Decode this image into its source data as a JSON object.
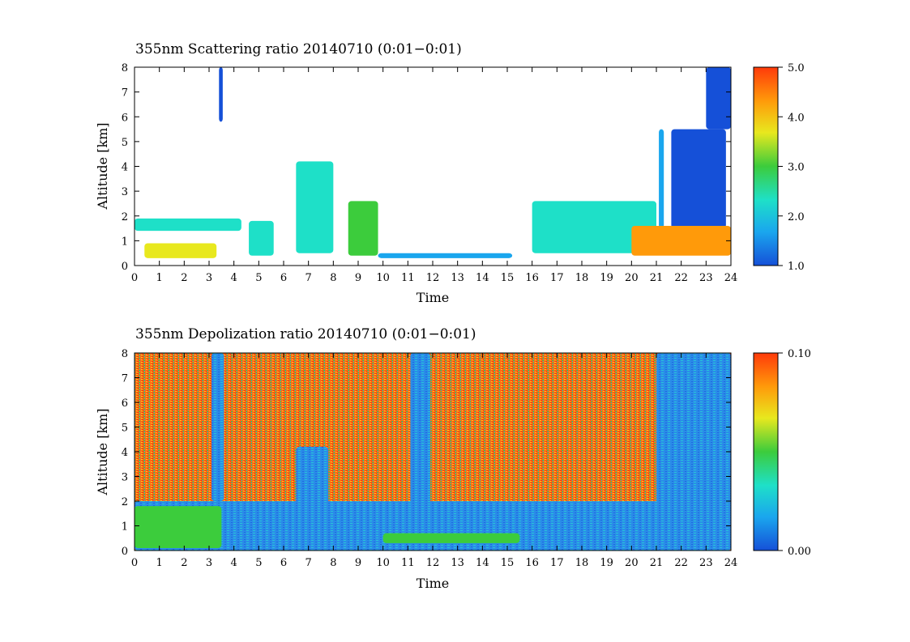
{
  "chart_data": [
    {
      "type": "heatmap",
      "title": "355nm Scattering ratio  20140710 (0:01−0:01)",
      "xlabel": "Time",
      "ylabel": "Altitude [km]",
      "xlim": [
        0,
        24
      ],
      "ylim": [
        0,
        8
      ],
      "x_ticks": [
        "0",
        "1",
        "2",
        "3",
        "4",
        "5",
        "6",
        "7",
        "8",
        "9",
        "10",
        "11",
        "12",
        "13",
        "14",
        "15",
        "16",
        "17",
        "18",
        "19",
        "20",
        "21",
        "22",
        "23",
        "24"
      ],
      "y_ticks": [
        "0",
        "1",
        "2",
        "3",
        "4",
        "5",
        "6",
        "7",
        "8"
      ],
      "colorbar": {
        "min": 1.0,
        "max": 5.0,
        "ticks": [
          "1.0",
          "2.0",
          "3.0",
          "4.0",
          "5.0"
        ],
        "colors": [
          "#1550d8",
          "#1aa6ee",
          "#1ee0c8",
          "#3ccc3c",
          "#e8e81e",
          "#ff9a0a",
          "#ff3a0a"
        ]
      },
      "features": [
        {
          "x": [
            0,
            4.3
          ],
          "y": [
            1.4,
            1.9
          ],
          "value": 2.2
        },
        {
          "x": [
            0.4,
            3.3
          ],
          "y": [
            0.3,
            0.9
          ],
          "value": 3.8
        },
        {
          "x": [
            3.4,
            3.55
          ],
          "y": [
            5.8,
            8
          ],
          "value": 1.3
        },
        {
          "x": [
            4.6,
            5.6
          ],
          "y": [
            0.4,
            1.8
          ],
          "value": 2.0
        },
        {
          "x": [
            6.5,
            8.0
          ],
          "y": [
            0.5,
            4.2
          ],
          "value": 2.5
        },
        {
          "x": [
            8.6,
            9.8
          ],
          "y": [
            0.4,
            2.6
          ],
          "value": 2.8
        },
        {
          "x": [
            9.8,
            15.2
          ],
          "y": [
            0.3,
            0.5
          ],
          "value": 1.5
        },
        {
          "x": [
            16.0,
            21.0
          ],
          "y": [
            0.5,
            2.6
          ],
          "value": 2.3
        },
        {
          "x": [
            21.1,
            21.3
          ],
          "y": [
            1.5,
            5.5
          ],
          "value": 1.4
        },
        {
          "x": [
            21.6,
            23.8
          ],
          "y": [
            1.5,
            5.5
          ],
          "value": 1.3
        },
        {
          "x": [
            20.0,
            24.0
          ],
          "y": [
            0.4,
            1.6
          ],
          "value": 4.2
        },
        {
          "x": [
            23.0,
            24.0
          ],
          "y": [
            5.5,
            8.0
          ],
          "value": 1.2
        }
      ]
    },
    {
      "type": "heatmap",
      "title": "355nm Depolization ratio  20140710 (0:01−0:01)",
      "xlabel": "Time",
      "ylabel": "Altitude [km]",
      "xlim": [
        0,
        24
      ],
      "ylim": [
        0,
        8
      ],
      "x_ticks": [
        "0",
        "1",
        "2",
        "3",
        "4",
        "5",
        "6",
        "7",
        "8",
        "9",
        "10",
        "11",
        "12",
        "13",
        "14",
        "15",
        "16",
        "17",
        "18",
        "19",
        "20",
        "21",
        "22",
        "23",
        "24"
      ],
      "y_ticks": [
        "0",
        "1",
        "2",
        "3",
        "4",
        "5",
        "6",
        "7",
        "8"
      ],
      "colorbar": {
        "min": 0.0,
        "max": 0.1,
        "ticks": [
          "0.00",
          "0.10"
        ],
        "colors": [
          "#1550d8",
          "#1aa6ee",
          "#1ee0c8",
          "#3ccc3c",
          "#e8e81e",
          "#ff9a0a",
          "#ff3a0a"
        ]
      },
      "features": [
        {
          "x": [
            0,
            21
          ],
          "y": [
            2.0,
            8.0
          ],
          "value": 0.085
        },
        {
          "x": [
            21,
            24
          ],
          "y": [
            0,
            8.0
          ],
          "value": 0.005
        },
        {
          "x": [
            0,
            24
          ],
          "y": [
            0,
            2.0
          ],
          "value": 0.02
        },
        {
          "x": [
            3.1,
            3.6
          ],
          "y": [
            2.0,
            8.0
          ],
          "value": 0.01
        },
        {
          "x": [
            11.1,
            11.9
          ],
          "y": [
            1.2,
            8.0
          ],
          "value": 0.01
        },
        {
          "x": [
            6.5,
            7.8
          ],
          "y": [
            0.3,
            4.2
          ],
          "value": 0.01
        },
        {
          "x": [
            10.0,
            15.5
          ],
          "y": [
            0.3,
            0.7
          ],
          "value": 0.045
        },
        {
          "x": [
            0,
            3.5
          ],
          "y": [
            0.1,
            1.8
          ],
          "value": 0.05
        }
      ]
    }
  ]
}
